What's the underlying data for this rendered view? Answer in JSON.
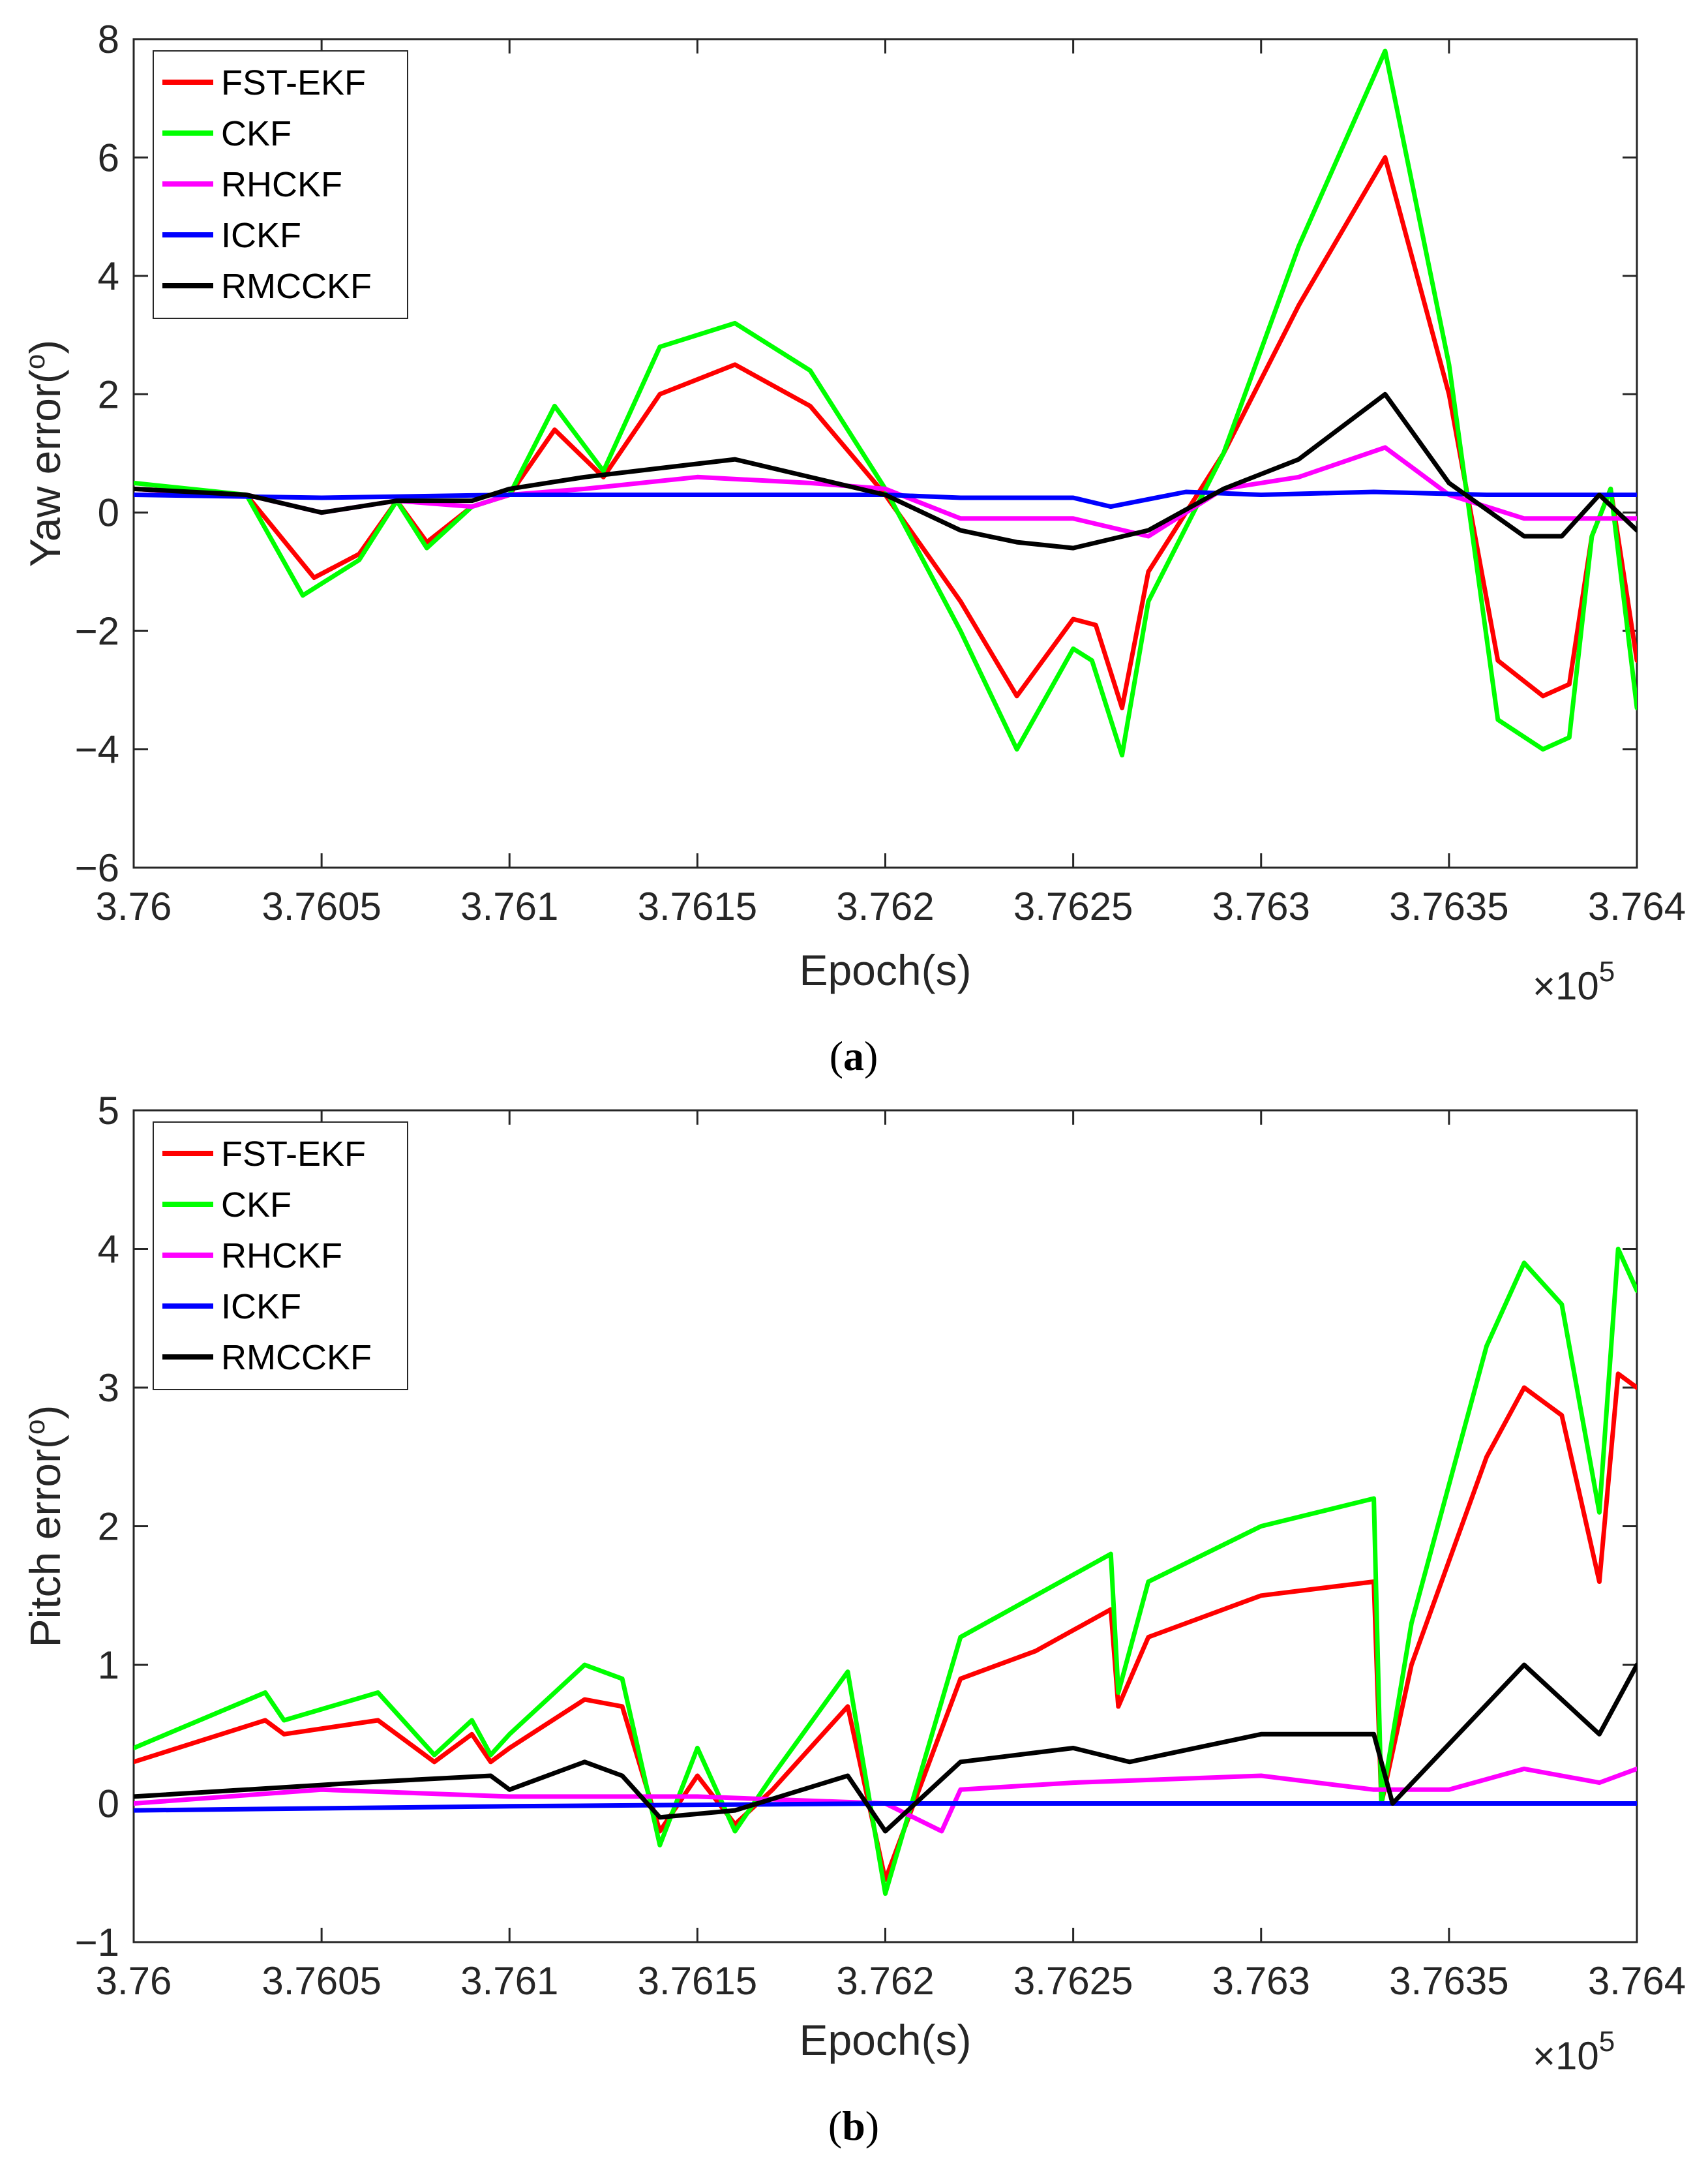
{
  "colors": {
    "FST-EKF": "#ff0000",
    "CKF": "#00ff00",
    "RHCKF": "#ff00ff",
    "ICKF": "#0000ff",
    "RMCCKF": "#000000"
  },
  "chart_data": [
    {
      "type": "line",
      "panel": "(a)",
      "caption": {
        "open": "(",
        "letter": "a",
        "close": ")"
      },
      "xlabel": "Epoch(s)",
      "ylabel": "Yaw error(",
      "ylabel_sup": "o",
      "ylabel_close": ")",
      "x_exponent": "×10",
      "x_exponent_sup": "5",
      "xlim": [
        3.76,
        3.764
      ],
      "ylim": [
        -6,
        8
      ],
      "xticks": [
        3.76,
        3.7605,
        3.761,
        3.7615,
        3.762,
        3.7625,
        3.763,
        3.7635,
        3.764
      ],
      "xtick_labels": [
        "3.76",
        "3.7605",
        "3.761",
        "3.7615",
        "3.762",
        "3.7625",
        "3.763",
        "3.7635",
        "3.764"
      ],
      "yticks": [
        -6,
        -4,
        -2,
        0,
        2,
        4,
        6,
        8
      ],
      "ytick_labels": [
        "−6",
        "−4",
        "−2",
        "0",
        "2",
        "4",
        "6",
        "8"
      ],
      "legend": [
        "FST-EKF",
        "CKF",
        "RHCKF",
        "ICKF",
        "RMCCKF"
      ],
      "legend_position": "top-left",
      "series": [
        {
          "name": "FST-EKF",
          "x": [
            3.76,
            3.7603,
            3.76048,
            3.7606,
            3.7607,
            3.76078,
            3.7609,
            3.761,
            3.76112,
            3.76125,
            3.7614,
            3.7616,
            3.7618,
            3.762,
            3.7622,
            3.76235,
            3.7625,
            3.76256,
            3.76263,
            3.7627,
            3.7629,
            3.7631,
            3.76333,
            3.7635,
            3.76363,
            3.76375,
            3.76382,
            3.76388,
            3.76393,
            3.764
          ],
          "y": [
            0.4,
            0.3,
            -1.1,
            -0.7,
            0.2,
            -0.5,
            0.1,
            0.3,
            1.4,
            0.6,
            2.0,
            2.5,
            1.8,
            0.3,
            -1.5,
            -3.1,
            -1.8,
            -1.9,
            -3.3,
            -1.0,
            1.0,
            3.5,
            6.0,
            2.0,
            -2.5,
            -3.1,
            -2.9,
            -0.4,
            0.4,
            -2.5
          ]
        },
        {
          "name": "CKF",
          "x": [
            3.76,
            3.7603,
            3.76045,
            3.7606,
            3.7607,
            3.76078,
            3.7609,
            3.761,
            3.76112,
            3.76125,
            3.7614,
            3.7616,
            3.7618,
            3.762,
            3.7622,
            3.76235,
            3.7625,
            3.76255,
            3.76263,
            3.7627,
            3.7629,
            3.7631,
            3.76333,
            3.7635,
            3.76363,
            3.76375,
            3.76382,
            3.76388,
            3.76393,
            3.764
          ],
          "y": [
            0.5,
            0.3,
            -1.4,
            -0.8,
            0.2,
            -0.6,
            0.1,
            0.3,
            1.8,
            0.7,
            2.8,
            3.2,
            2.4,
            0.4,
            -2.0,
            -4.0,
            -2.3,
            -2.5,
            -4.1,
            -1.5,
            1.0,
            4.5,
            7.8,
            2.5,
            -3.5,
            -4.0,
            -3.8,
            -0.4,
            0.4,
            -3.3
          ]
        },
        {
          "name": "RHCKF",
          "x": [
            3.76,
            3.7603,
            3.7605,
            3.7607,
            3.7609,
            3.761,
            3.7612,
            3.7615,
            3.7618,
            3.762,
            3.7622,
            3.7625,
            3.7627,
            3.7629,
            3.7631,
            3.76333,
            3.7635,
            3.7637,
            3.764
          ],
          "y": [
            0.3,
            0.3,
            0.0,
            0.2,
            0.1,
            0.3,
            0.4,
            0.6,
            0.5,
            0.4,
            -0.1,
            -0.1,
            -0.4,
            0.4,
            0.6,
            1.1,
            0.3,
            -0.1,
            -0.1
          ]
        },
        {
          "name": "ICKF",
          "x": [
            3.76,
            3.7605,
            3.761,
            3.7615,
            3.762,
            3.7622,
            3.7625,
            3.7626,
            3.7628,
            3.763,
            3.7633,
            3.7636,
            3.7639,
            3.764
          ],
          "y": [
            0.3,
            0.25,
            0.3,
            0.3,
            0.3,
            0.25,
            0.25,
            0.1,
            0.35,
            0.3,
            0.35,
            0.3,
            0.3,
            0.3
          ]
        },
        {
          "name": "RMCCKF",
          "x": [
            3.76,
            3.7603,
            3.7605,
            3.7607,
            3.7609,
            3.761,
            3.7612,
            3.7616,
            3.762,
            3.7622,
            3.76235,
            3.7625,
            3.7627,
            3.7629,
            3.7631,
            3.76333,
            3.7635,
            3.7637,
            3.7638,
            3.7639,
            3.764
          ],
          "y": [
            0.4,
            0.3,
            0.0,
            0.2,
            0.2,
            0.4,
            0.6,
            0.9,
            0.3,
            -0.3,
            -0.5,
            -0.6,
            -0.3,
            0.4,
            0.9,
            2.0,
            0.5,
            -0.4,
            -0.4,
            0.3,
            -0.3
          ]
        }
      ]
    },
    {
      "type": "line",
      "panel": "(b)",
      "caption": {
        "open": "(",
        "letter": "b",
        "close": ")"
      },
      "xlabel": "Epoch(s)",
      "ylabel": "Pitch error(",
      "ylabel_sup": "o",
      "ylabel_close": ")",
      "x_exponent": "×10",
      "x_exponent_sup": "5",
      "xlim": [
        3.76,
        3.764
      ],
      "ylim": [
        -1,
        5
      ],
      "xticks": [
        3.76,
        3.7605,
        3.761,
        3.7615,
        3.762,
        3.7625,
        3.763,
        3.7635,
        3.764
      ],
      "xtick_labels": [
        "3.76",
        "3.7605",
        "3.761",
        "3.7615",
        "3.762",
        "3.7625",
        "3.763",
        "3.7635",
        "3.764"
      ],
      "yticks": [
        -1,
        0,
        1,
        2,
        3,
        4,
        5
      ],
      "ytick_labels": [
        "−1",
        "0",
        "1",
        "2",
        "3",
        "4",
        "5"
      ],
      "legend": [
        "FST-EKF",
        "CKF",
        "RHCKF",
        "ICKF",
        "RMCCKF"
      ],
      "legend_position": "top-left",
      "series": [
        {
          "name": "FST-EKF",
          "x": [
            3.76,
            3.76035,
            3.7604,
            3.76065,
            3.7608,
            3.7609,
            3.76095,
            3.761,
            3.7612,
            3.7613,
            3.7614,
            3.7615,
            3.7616,
            3.7617,
            3.7619,
            3.762,
            3.7622,
            3.7624,
            3.7626,
            3.76262,
            3.7627,
            3.763,
            3.7633,
            3.76332,
            3.7634,
            3.7636,
            3.7637,
            3.7638,
            3.7639,
            3.76395,
            3.764
          ],
          "y": [
            0.3,
            0.6,
            0.5,
            0.6,
            0.3,
            0.5,
            0.3,
            0.4,
            0.75,
            0.7,
            -0.2,
            0.2,
            -0.15,
            0.1,
            0.7,
            -0.55,
            0.9,
            1.1,
            1.4,
            0.7,
            1.2,
            1.5,
            1.6,
            0.0,
            1.0,
            2.5,
            3.0,
            2.8,
            1.6,
            3.1,
            3.0
          ]
        },
        {
          "name": "CKF",
          "x": [
            3.76,
            3.76035,
            3.7604,
            3.76065,
            3.7608,
            3.7609,
            3.76095,
            3.761,
            3.7612,
            3.7613,
            3.7614,
            3.7615,
            3.7616,
            3.7617,
            3.7619,
            3.762,
            3.7622,
            3.7624,
            3.7626,
            3.76262,
            3.7627,
            3.763,
            3.7633,
            3.76332,
            3.7634,
            3.7636,
            3.7637,
            3.7638,
            3.7639,
            3.76395,
            3.764
          ],
          "y": [
            0.4,
            0.8,
            0.6,
            0.8,
            0.35,
            0.6,
            0.35,
            0.5,
            1.0,
            0.9,
            -0.3,
            0.4,
            -0.2,
            0.2,
            0.95,
            -0.65,
            1.2,
            1.5,
            1.8,
            0.8,
            1.6,
            2.0,
            2.2,
            0.0,
            1.3,
            3.3,
            3.9,
            3.6,
            2.1,
            4.0,
            3.7
          ]
        },
        {
          "name": "RHCKF",
          "x": [
            3.76,
            3.7605,
            3.761,
            3.7615,
            3.762,
            3.76215,
            3.7622,
            3.7625,
            3.763,
            3.7633,
            3.7635,
            3.7637,
            3.7639,
            3.764
          ],
          "y": [
            0.0,
            0.1,
            0.05,
            0.05,
            0.0,
            -0.2,
            0.1,
            0.15,
            0.2,
            0.1,
            0.1,
            0.25,
            0.15,
            0.25
          ]
        },
        {
          "name": "ICKF",
          "x": [
            3.76,
            3.761,
            3.762,
            3.763,
            3.764
          ],
          "y": [
            -0.05,
            -0.02,
            0.0,
            0.0,
            0.0
          ]
        },
        {
          "name": "RMCCKF",
          "x": [
            3.76,
            3.7603,
            3.7606,
            3.76095,
            3.761,
            3.7612,
            3.7613,
            3.7614,
            3.7616,
            3.7619,
            3.762,
            3.7622,
            3.7625,
            3.76265,
            3.763,
            3.7633,
            3.76335,
            3.7637,
            3.7639,
            3.764
          ],
          "y": [
            0.05,
            0.1,
            0.15,
            0.2,
            0.1,
            0.3,
            0.2,
            -0.1,
            -0.05,
            0.2,
            -0.2,
            0.3,
            0.4,
            0.3,
            0.5,
            0.5,
            0.0,
            1.0,
            0.5,
            1.0
          ]
        }
      ]
    }
  ]
}
